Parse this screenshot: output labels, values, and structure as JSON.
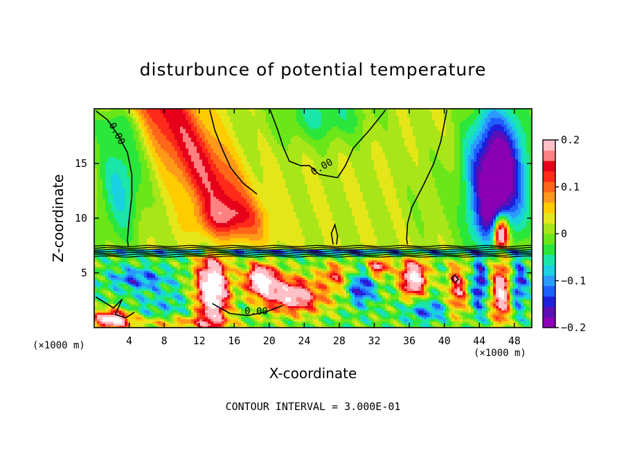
{
  "chart_data": {
    "type": "heatmap",
    "title": "disturbunce of potential temperature",
    "xlabel": "X-coordinate",
    "ylabel": "Z-coordinate",
    "x_unit_label": "(×1000 m)",
    "x_unit_label_right": "(×1000 m)",
    "xlim": [
      0,
      50
    ],
    "ylim": [
      0,
      20
    ],
    "x_ticks": [
      4,
      8,
      12,
      16,
      20,
      24,
      28,
      32,
      36,
      40,
      44,
      48
    ],
    "y_ticks": [
      5,
      10,
      15
    ],
    "colorbar": {
      "min": -0.2,
      "max": 0.2,
      "tick_values": [
        0.2,
        0.1,
        0,
        -0.1,
        -0.2
      ],
      "tick_labels": [
        "0.2",
        "0.1",
        "0",
        "−0.1",
        "−0.2"
      ],
      "colors": [
        "#8B00B3",
        "#5A0FB5",
        "#1E1EDB",
        "#1F5FFF",
        "#2C9BFF",
        "#19D1E0",
        "#19E6A8",
        "#2BE63B",
        "#6BE619",
        "#A8E619",
        "#E5E619",
        "#FFCC00",
        "#FF9919",
        "#FF6619",
        "#FF2A1A",
        "#E6001A",
        "#FF8080",
        "#FFC0C8"
      ]
    },
    "contour_labels": [
      "0.00",
      "0.00",
      "0.00"
    ],
    "contour_interval_text": "CONTOUR INTERVAL = 3.000E-01"
  }
}
